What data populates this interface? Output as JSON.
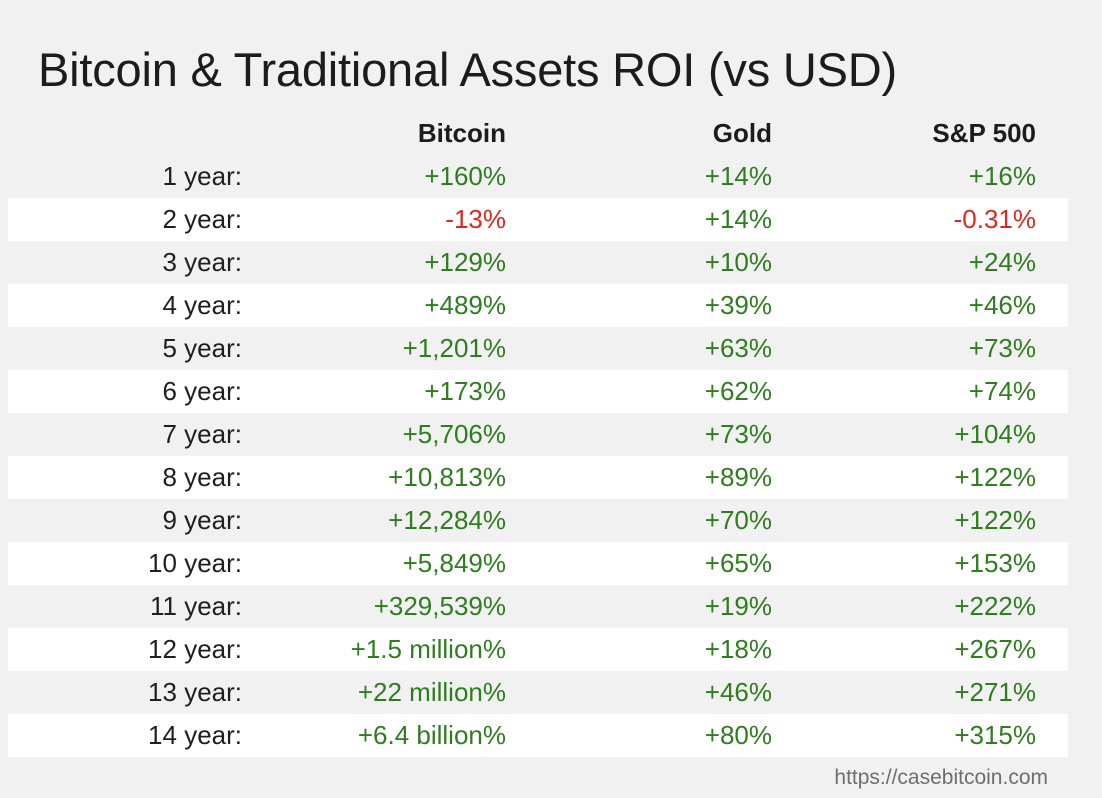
{
  "title": "Bitcoin & Traditional Assets ROI (vs USD)",
  "columns": [
    "Bitcoin",
    "Gold",
    "S&P 500"
  ],
  "colors": {
    "positive": "#2e7d1e",
    "negative": "#e0261e"
  },
  "rows": [
    {
      "label": "1 year:",
      "bitcoin": "+160%",
      "gold": "+14%",
      "sp500": "+16%"
    },
    {
      "label": "2 year:",
      "bitcoin": "-13%",
      "gold": "+14%",
      "sp500": "-0.31%"
    },
    {
      "label": "3 year:",
      "bitcoin": "+129%",
      "gold": "+10%",
      "sp500": "+24%"
    },
    {
      "label": "4 year:",
      "bitcoin": "+489%",
      "gold": "+39%",
      "sp500": "+46%"
    },
    {
      "label": "5 year:",
      "bitcoin": "+1,201%",
      "gold": "+63%",
      "sp500": "+73%"
    },
    {
      "label": "6 year:",
      "bitcoin": "+173%",
      "gold": "+62%",
      "sp500": "+74%"
    },
    {
      "label": "7 year:",
      "bitcoin": "+5,706%",
      "gold": "+73%",
      "sp500": "+104%"
    },
    {
      "label": "8 year:",
      "bitcoin": "+10,813%",
      "gold": "+89%",
      "sp500": "+122%"
    },
    {
      "label": "9 year:",
      "bitcoin": "+12,284%",
      "gold": "+70%",
      "sp500": "+122%"
    },
    {
      "label": "10 year:",
      "bitcoin": "+5,849%",
      "gold": "+65%",
      "sp500": "+153%"
    },
    {
      "label": "11 year:",
      "bitcoin": "+329,539%",
      "gold": "+19%",
      "sp500": "+222%"
    },
    {
      "label": "12 year:",
      "bitcoin": "+1.5 million%",
      "gold": "+18%",
      "sp500": "+267%"
    },
    {
      "label": "13 year:",
      "bitcoin": "+22 million%",
      "gold": "+46%",
      "sp500": "+271%"
    },
    {
      "label": "14 year:",
      "bitcoin": "+6.4 billion%",
      "gold": "+80%",
      "sp500": "+315%"
    }
  ],
  "footer": "https://casebitcoin.com"
}
